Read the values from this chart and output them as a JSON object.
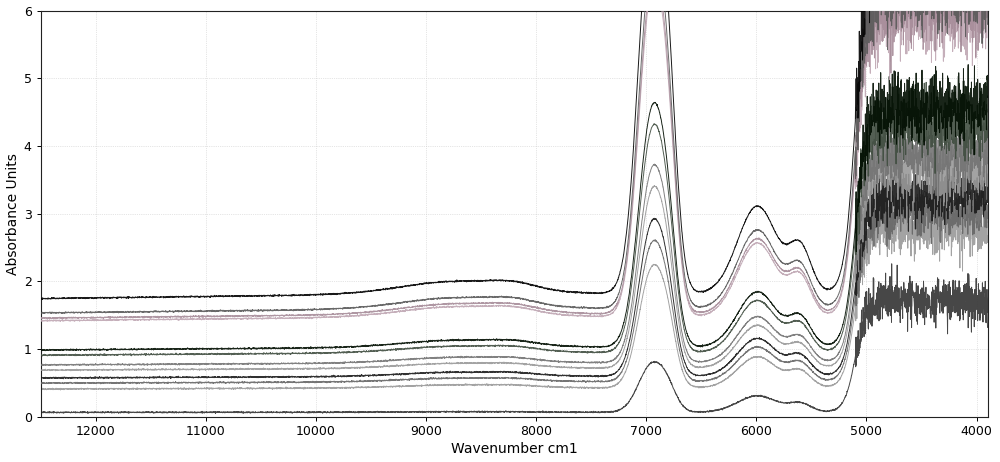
{
  "xlabel": "Wavenumber cm1",
  "ylabel": "Absorbance Units",
  "xlim": [
    12500,
    3900
  ],
  "ylim": [
    0,
    6
  ],
  "xticks": [
    12000,
    11000,
    10000,
    9000,
    8000,
    7000,
    6000,
    5000,
    4000
  ],
  "yticks": [
    0,
    1,
    2,
    3,
    4,
    5,
    6
  ],
  "bg_color": "#ffffff",
  "n_spectra": 12,
  "base_levels": [
    1.82,
    1.6,
    1.52,
    1.48,
    1.03,
    0.95,
    0.8,
    0.72,
    0.6,
    0.52,
    0.43,
    0.07
  ],
  "line_colors": [
    "#333333",
    "#777777",
    "#aaaaaa",
    "#bbbbbb",
    "#000000",
    "#444444",
    "#666666",
    "#888888",
    "#222222",
    "#555555",
    "#888888",
    "#333333"
  ],
  "figsize": [
    10.0,
    4.62
  ],
  "dpi": 100
}
